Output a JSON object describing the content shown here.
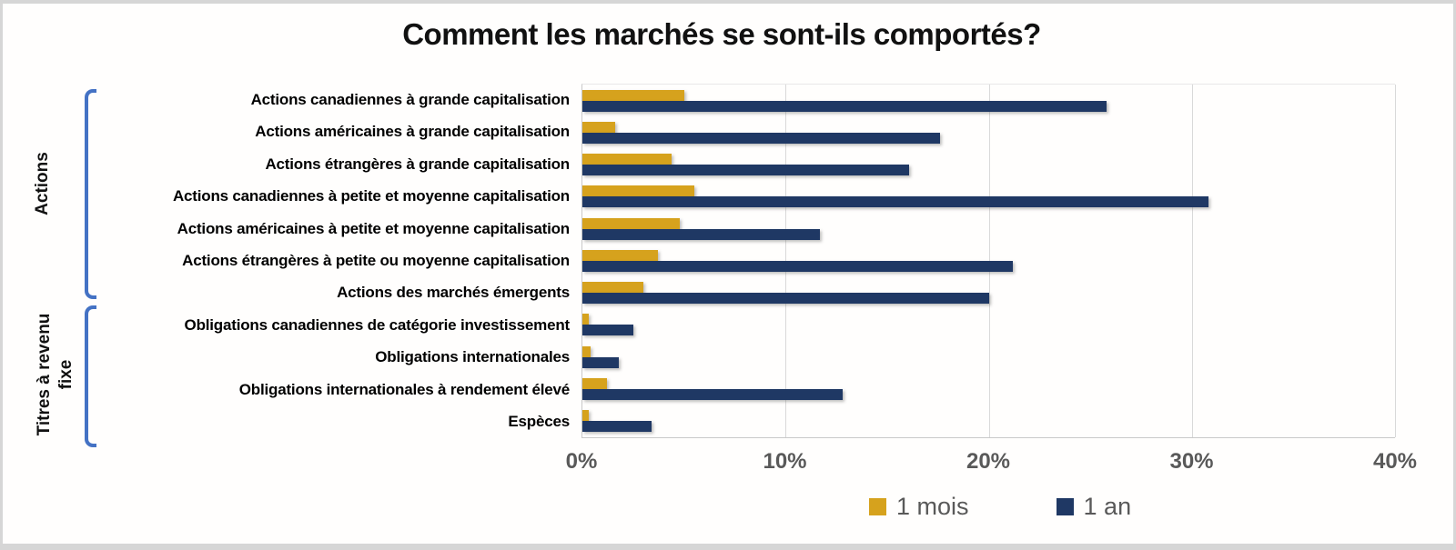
{
  "title": "Comment les marchés se sont-ils comportés?",
  "chart_data": {
    "type": "bar",
    "orientation": "horizontal",
    "title": "Comment les marchés se sont-ils comportés?",
    "categories": [
      "Actions canadiennes à grande capitalisation",
      "Actions américaines à grande capitalisation",
      "Actions étrangères à grande capitalisation",
      "Actions canadiennes à petite et moyenne capitalisation",
      "Actions américaines à petite et moyenne capitalisation",
      "Actions étrangères à petite ou moyenne capitalisation",
      "Actions des marchés émergents",
      "Obligations canadiennes de catégorie investissement",
      "Obligations internationales",
      "Obligations internationales à rendement élevé",
      "Espèces"
    ],
    "series": [
      {
        "name": "1 mois",
        "color": "#D6A21D",
        "values": [
          5.0,
          1.6,
          4.4,
          5.5,
          4.8,
          3.7,
          3.0,
          0.3,
          0.4,
          1.2,
          0.3
        ]
      },
      {
        "name": "1 an",
        "color": "#1F3864",
        "values": [
          25.8,
          17.6,
          16.1,
          30.8,
          11.7,
          21.2,
          20.0,
          2.5,
          1.8,
          12.8,
          3.4
        ]
      }
    ],
    "x_axis": {
      "min": 0,
      "max": 40,
      "tick_labels": [
        "0%",
        "10%",
        "20%",
        "30%",
        "40%"
      ],
      "tick_values": [
        0,
        10,
        20,
        30,
        40
      ]
    },
    "groups": [
      {
        "label": "Actions",
        "from_category": 0,
        "to_category": 6
      },
      {
        "label": "Titres à revenu fixe",
        "from_category": 7,
        "to_category": 10
      }
    ],
    "legend_position": "bottom",
    "grid": true,
    "gridline_color": "#D9D9D9",
    "background_color": "#FFFFFF",
    "bracket_color": "#4472C4"
  }
}
